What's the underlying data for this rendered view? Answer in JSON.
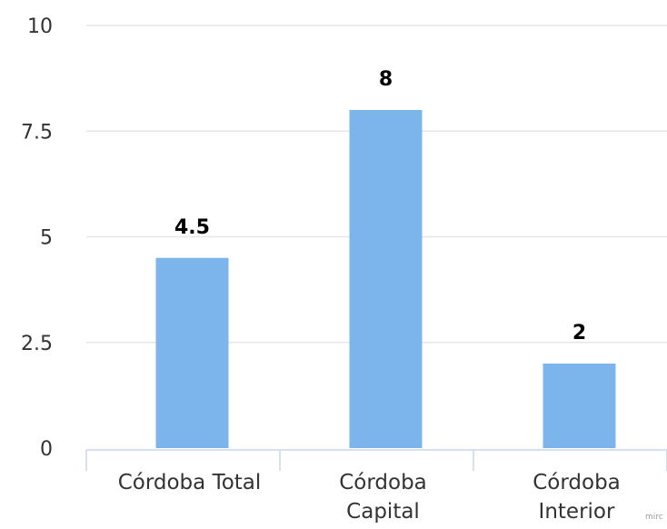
{
  "chart_data": {
    "type": "bar",
    "categories": [
      [
        "Córdoba Total"
      ],
      [
        "Córdoba",
        "Capital"
      ],
      [
        "Córdoba",
        "Interior"
      ]
    ],
    "values": [
      4.5,
      8,
      2
    ],
    "data_labels": [
      "4.5",
      "8",
      "2"
    ],
    "y_ticks": [
      0,
      2.5,
      5,
      7.5,
      10
    ],
    "y_tick_labels": [
      "0",
      "2.5",
      "5",
      "7.5",
      "10"
    ],
    "ylim": [
      0,
      10
    ],
    "grid": true,
    "legend": "none",
    "title": "",
    "xlabel": "",
    "ylabel": "",
    "credit": "mirc"
  },
  "colors": {
    "bar": "#7cb5ec",
    "grid": "#e6e6e6",
    "axis": "#ccd6eb"
  }
}
